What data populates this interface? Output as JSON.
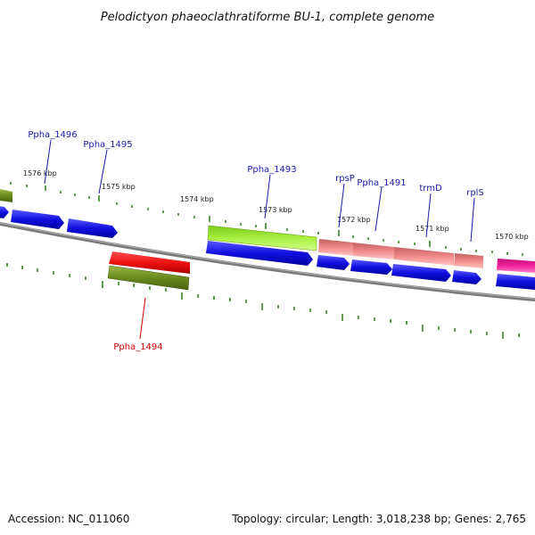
{
  "title": "Pelodictyon phaeoclathratiforme BU-1, complete genome",
  "footer": {
    "accession": "Accession: NC_011060",
    "stats": "Topology: circular; Length: 3,018,238 bp; Genes: 2,765"
  },
  "colors": {
    "label_blue": "#1a1aa8",
    "label_red": "#cc0000",
    "cds_blue": "#1010e0",
    "olive": "#6a8a1e",
    "lime": "#a8f040",
    "salmon": "#f08a8a",
    "red": "#ee1111",
    "magenta": "#f0209a",
    "backbone": "#7a7a7a",
    "tick": "#2a7a1a"
  },
  "ticks": [
    {
      "label": "1576 kbp"
    },
    {
      "label": "1575 kbp"
    },
    {
      "label": "1574 kbp"
    },
    {
      "label": "1573 kbp"
    },
    {
      "label": "1572 kbp"
    },
    {
      "label": "1571 kbp"
    },
    {
      "label": "1570 kbp"
    }
  ],
  "gene_labels": [
    {
      "text": "Ppha_1496",
      "color": "blue"
    },
    {
      "text": "Ppha_1495",
      "color": "blue"
    },
    {
      "text": "Ppha_1493",
      "color": "blue"
    },
    {
      "text": "rpsP",
      "color": "blue"
    },
    {
      "text": "Ppha_1491",
      "color": "blue"
    },
    {
      "text": "trmD",
      "color": "blue"
    },
    {
      "text": "rplS",
      "color": "blue"
    },
    {
      "text": "Ppha_1494",
      "color": "red"
    }
  ]
}
